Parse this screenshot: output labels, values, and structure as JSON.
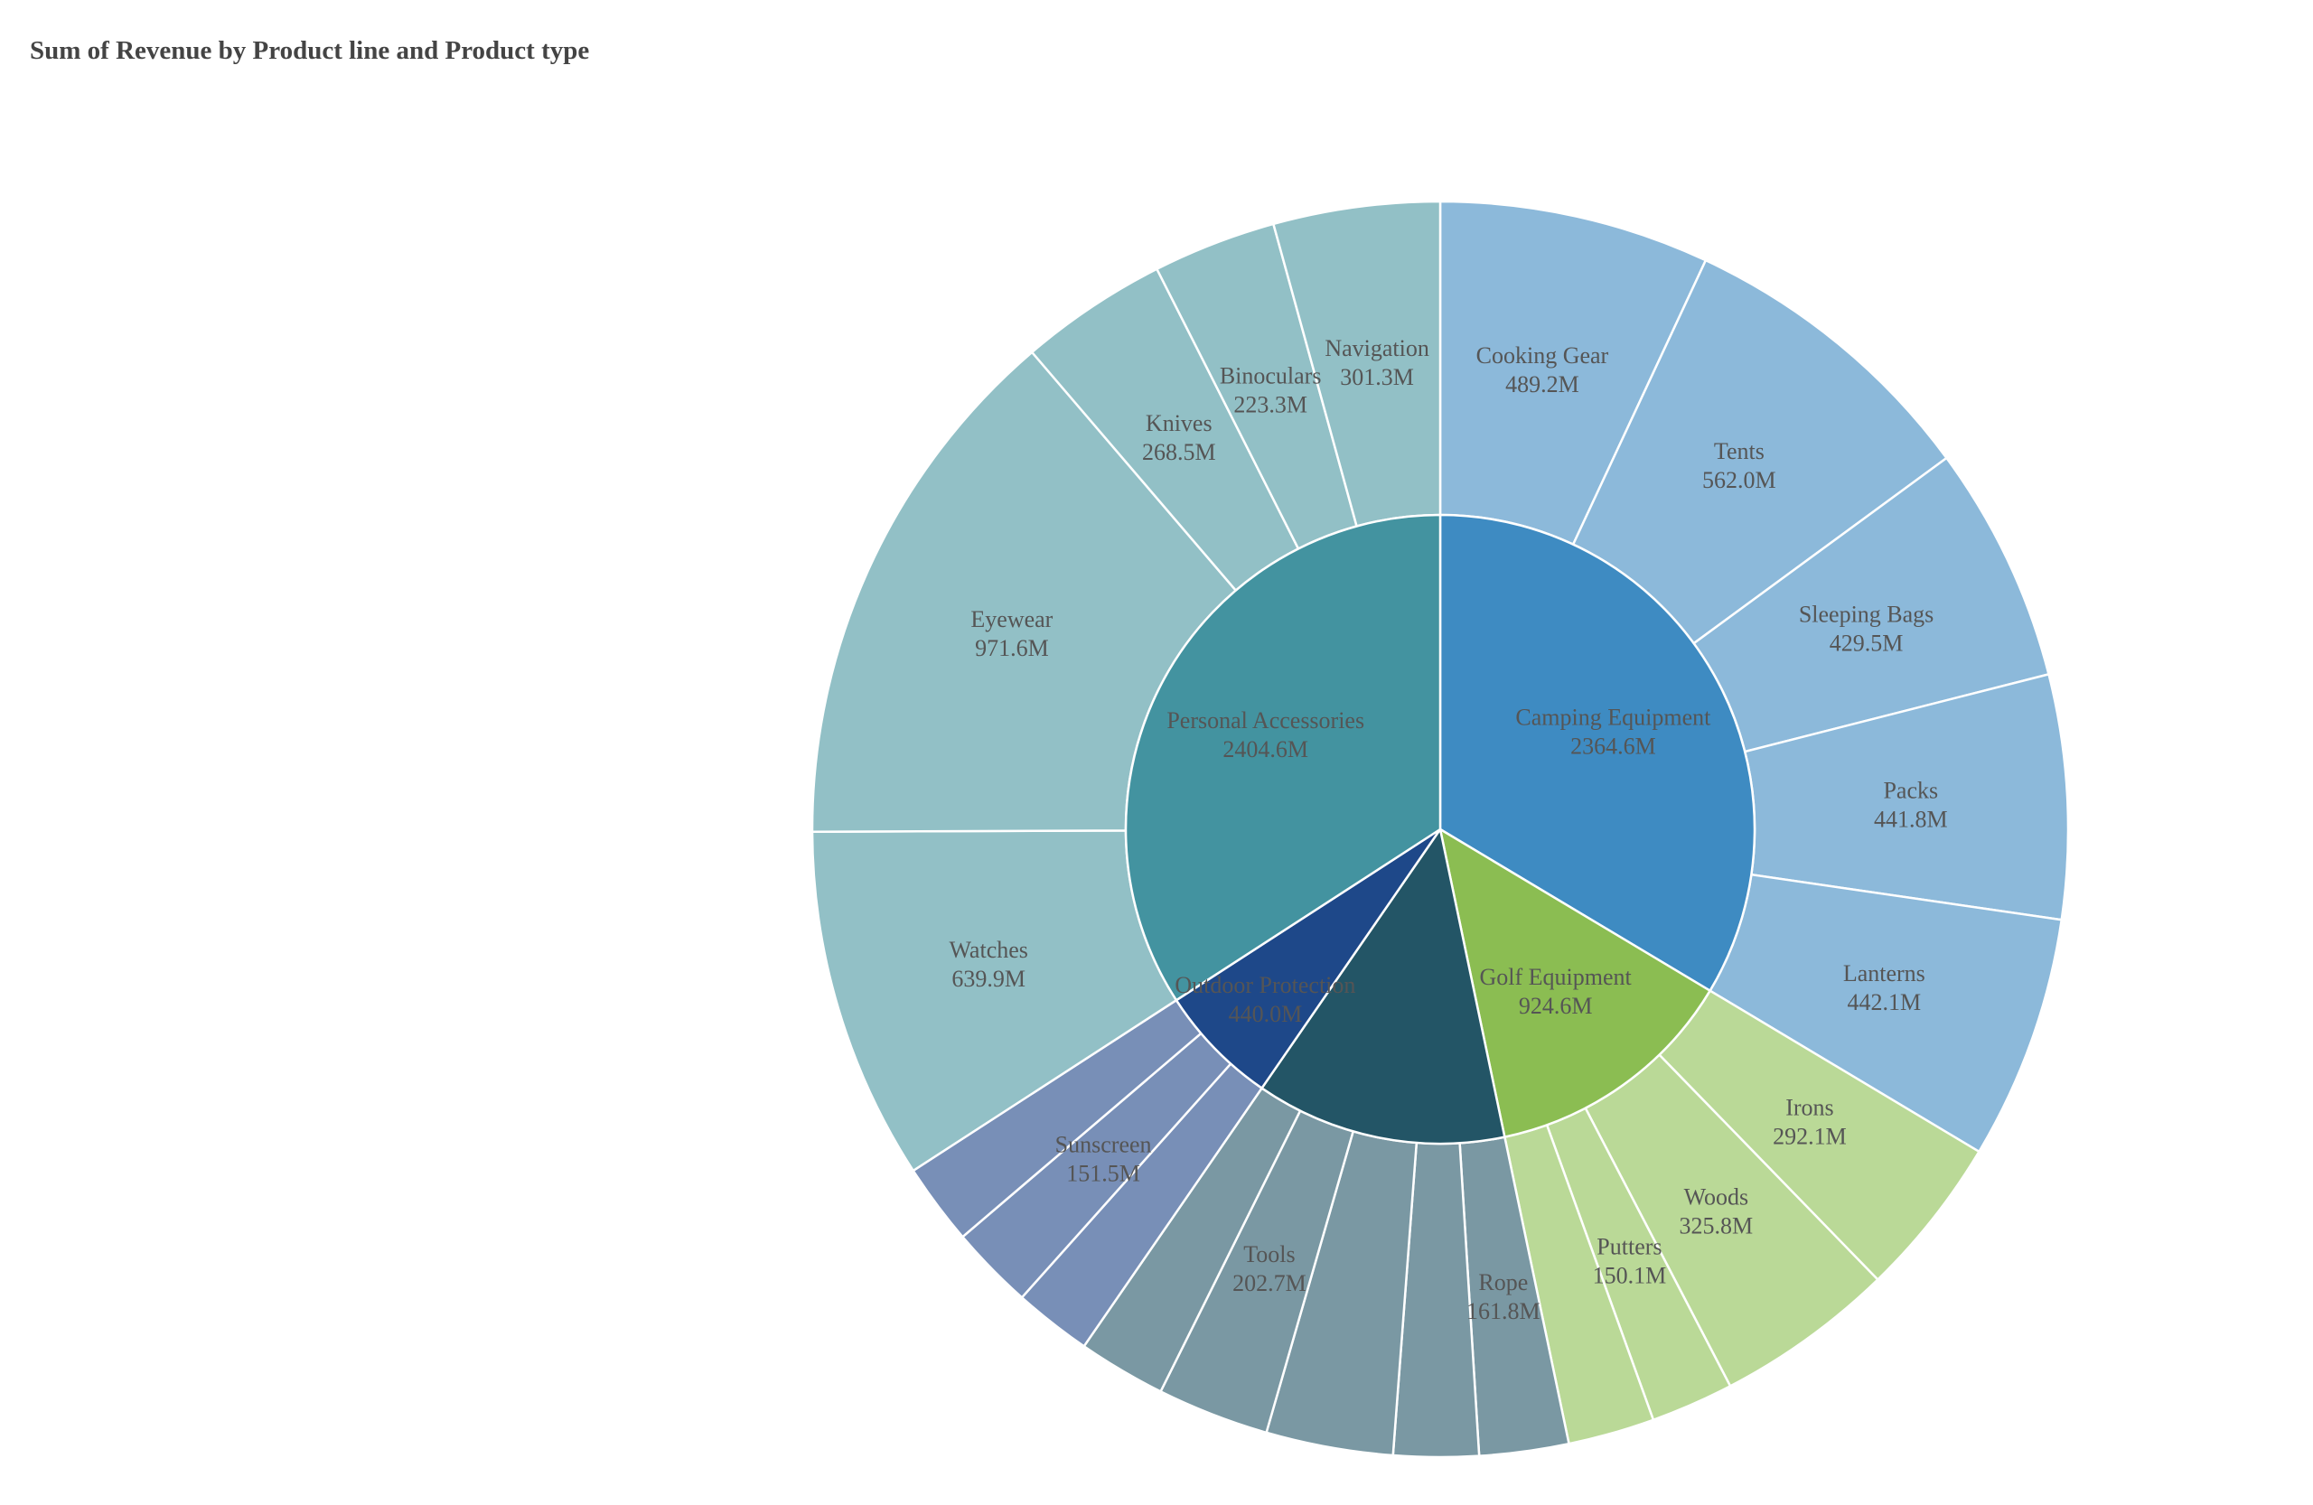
{
  "chart_data": {
    "type": "sunburst",
    "title": "Sum of Revenue by Product line and Product type",
    "segments": [
      {
        "name": "Camping Equipment",
        "value": 2364.6,
        "value_label": "2364.6M",
        "color": "#3e8bc2",
        "child_color": "#8cb9da",
        "label_color": "#555555",
        "children": [
          {
            "name": "Cooking Gear",
            "value": 489.2,
            "value_label": "489.2M"
          },
          {
            "name": "Tents",
            "value": 562.0,
            "value_label": "562.0M"
          },
          {
            "name": "Sleeping Bags",
            "value": 429.5,
            "value_label": "429.5M"
          },
          {
            "name": "Packs",
            "value": 441.8,
            "value_label": "441.8M"
          },
          {
            "name": "Lanterns",
            "value": 442.1,
            "value_label": "442.1M"
          }
        ]
      },
      {
        "name": "Golf Equipment",
        "value": 924.6,
        "value_label": "924.6M",
        "color": "#8bbd52",
        "child_color": "#bad997",
        "label_color": "#555555",
        "children": [
          {
            "name": "Irons",
            "value": 292.1,
            "value_label": "292.1M"
          },
          {
            "name": "Woods",
            "value": 325.8,
            "value_label": "325.8M"
          },
          {
            "name": "Putters",
            "value": 150.1,
            "value_label": "150.1M"
          },
          {
            "name": "",
            "value": 156.6,
            "value_label": ""
          }
        ]
      },
      {
        "name": "",
        "value": 907.5,
        "value_label": "",
        "color": "#235566",
        "child_color": "#7a98a3",
        "label_color": "#555555",
        "children": [
          {
            "name": "Rope",
            "value": 161.8,
            "value_label": "161.8M"
          },
          {
            "name": "",
            "value": 154.0,
            "value_label": ""
          },
          {
            "name": "",
            "value": 230.0,
            "value_label": ""
          },
          {
            "name": "Tools",
            "value": 202.7,
            "value_label": "202.7M"
          },
          {
            "name": "",
            "value": 159.0,
            "value_label": ""
          }
        ]
      },
      {
        "name": "Outdoor Protection",
        "value": 440.0,
        "value_label": "440.0M",
        "color": "#1e4889",
        "child_color": "#788fb7",
        "label_color": "#555555",
        "label_pos": "inner-overlap",
        "children": [
          {
            "name": "",
            "value": 141.0,
            "value_label": ""
          },
          {
            "name": "Sunscreen",
            "value": 151.5,
            "value_label": "151.5M"
          },
          {
            "name": "",
            "value": 147.5,
            "value_label": ""
          }
        ]
      },
      {
        "name": "Personal Accessories",
        "value": 2404.6,
        "value_label": "2404.6M",
        "color": "#4393a0",
        "child_color": "#92c0c6",
        "label_color": "#555555",
        "children": [
          {
            "name": "Watches",
            "value": 639.9,
            "value_label": "639.9M"
          },
          {
            "name": "Eyewear",
            "value": 971.6,
            "value_label": "971.6M"
          },
          {
            "name": "Knives",
            "value": 268.5,
            "value_label": "268.5M"
          },
          {
            "name": "Binoculars",
            "value": 223.3,
            "value_label": "223.3M"
          },
          {
            "name": "Navigation",
            "value": 301.3,
            "value_label": "301.3M"
          }
        ]
      }
    ]
  }
}
